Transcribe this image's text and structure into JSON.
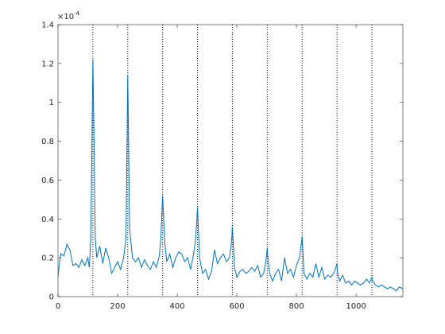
{
  "chart_data": {
    "type": "line",
    "y_multiplier": {
      "base": "×10",
      "exponent": "-4"
    },
    "xlim": [
      0,
      1157
    ],
    "ylim": [
      0,
      1.4
    ],
    "xticks": [
      0,
      200,
      400,
      600,
      800,
      1000
    ],
    "yticks": [
      0,
      0.2,
      0.4,
      0.6,
      0.8,
      1,
      1.2,
      1.4
    ],
    "vlines": [
      117,
      234,
      351,
      468,
      585,
      702,
      819,
      936,
      1053
    ],
    "vline_color": "#000000",
    "series": [
      {
        "color": "#0072bd",
        "x": [
          0,
          5,
          10,
          20,
          30,
          40,
          50,
          60,
          70,
          80,
          90,
          100,
          105,
          110,
          114,
          117,
          120,
          125,
          130,
          140,
          150,
          160,
          170,
          180,
          190,
          200,
          210,
          220,
          228,
          232,
          234,
          236,
          240,
          250,
          260,
          270,
          280,
          290,
          300,
          310,
          320,
          330,
          340,
          345,
          349,
          351,
          353,
          358,
          365,
          375,
          385,
          395,
          405,
          415,
          425,
          435,
          445,
          455,
          462,
          466,
          468,
          470,
          475,
          485,
          495,
          505,
          515,
          525,
          535,
          545,
          555,
          565,
          575,
          580,
          583,
          585,
          587,
          592,
          600,
          610,
          620,
          630,
          640,
          650,
          660,
          670,
          680,
          690,
          697,
          700,
          702,
          704,
          710,
          720,
          730,
          740,
          750,
          760,
          770,
          780,
          790,
          800,
          810,
          815,
          817,
          819,
          821,
          825,
          835,
          845,
          855,
          865,
          875,
          885,
          895,
          905,
          915,
          925,
          932,
          934,
          936,
          938,
          945,
          955,
          965,
          975,
          985,
          995,
          1005,
          1015,
          1025,
          1035,
          1045,
          1050,
          1053,
          1056,
          1065,
          1075,
          1085,
          1095,
          1105,
          1115,
          1125,
          1135,
          1145,
          1157
        ],
        "values": [
          0.1,
          0.18,
          0.22,
          0.21,
          0.27,
          0.24,
          0.16,
          0.17,
          0.15,
          0.19,
          0.16,
          0.2,
          0.15,
          0.3,
          0.8,
          1.22,
          0.9,
          0.3,
          0.2,
          0.26,
          0.17,
          0.25,
          0.2,
          0.12,
          0.15,
          0.18,
          0.14,
          0.2,
          0.3,
          0.85,
          1.14,
          0.9,
          0.35,
          0.2,
          0.18,
          0.2,
          0.15,
          0.19,
          0.16,
          0.14,
          0.18,
          0.15,
          0.21,
          0.3,
          0.45,
          0.52,
          0.45,
          0.28,
          0.18,
          0.22,
          0.15,
          0.2,
          0.23,
          0.22,
          0.18,
          0.2,
          0.14,
          0.22,
          0.3,
          0.4,
          0.46,
          0.38,
          0.2,
          0.12,
          0.14,
          0.09,
          0.13,
          0.24,
          0.17,
          0.2,
          0.22,
          0.18,
          0.2,
          0.25,
          0.3,
          0.36,
          0.3,
          0.15,
          0.1,
          0.13,
          0.14,
          0.12,
          0.13,
          0.15,
          0.13,
          0.16,
          0.1,
          0.12,
          0.18,
          0.22,
          0.25,
          0.2,
          0.12,
          0.08,
          0.12,
          0.14,
          0.08,
          0.2,
          0.12,
          0.14,
          0.1,
          0.16,
          0.2,
          0.26,
          0.28,
          0.31,
          0.25,
          0.12,
          0.09,
          0.12,
          0.1,
          0.17,
          0.1,
          0.15,
          0.09,
          0.11,
          0.1,
          0.12,
          0.15,
          0.16,
          0.17,
          0.12,
          0.08,
          0.11,
          0.07,
          0.08,
          0.06,
          0.08,
          0.07,
          0.06,
          0.07,
          0.09,
          0.07,
          0.09,
          0.1,
          0.08,
          0.06,
          0.05,
          0.06,
          0.05,
          0.04,
          0.05,
          0.04,
          0.03,
          0.05,
          0.04
        ]
      }
    ]
  }
}
